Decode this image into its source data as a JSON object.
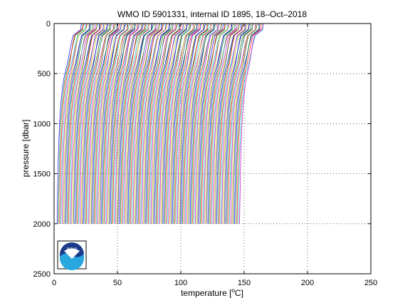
{
  "chart_data": {
    "type": "line",
    "title": "WMO ID 5901331, internal ID 1895, 18–Oct–2018",
    "xlabel_prefix": "temperature [",
    "xlabel_sup": "o",
    "xlabel_suffix": "C]",
    "ylabel": "pressure [dbar]",
    "xlim": [
      0,
      250
    ],
    "ylim": [
      0,
      2500
    ],
    "y_reversed": true,
    "x_ticks": [
      0,
      50,
      100,
      150,
      200,
      250
    ],
    "y_ticks": [
      0,
      500,
      1000,
      1500,
      2000,
      2500
    ],
    "x_tick_labels": [
      "0",
      "50",
      "100",
      "150",
      "200",
      "250"
    ],
    "y_tick_labels": [
      "0",
      "500",
      "1000",
      "1500",
      "2000",
      "2500"
    ],
    "grid": "dotted",
    "profiles": {
      "count": 145,
      "offset_step": 1,
      "first_profile_temperature_vs_pressure": {
        "pressure": [
          0,
          60,
          120,
          200,
          300,
          400,
          500,
          600,
          800,
          1000,
          1200,
          1400,
          1600,
          1800,
          2000
        ],
        "temperature": [
          21.5,
          21.0,
          15.0,
          13.5,
          12.0,
          10.5,
          8.5,
          7.0,
          5.3,
          4.3,
          3.7,
          3.2,
          2.9,
          2.6,
          2.4
        ]
      }
    },
    "series_colors": [
      "#0000ff",
      "#008000",
      "#ff0000",
      "#00bfbf",
      "#bf00bf",
      "#bfbf00",
      "#404040"
    ]
  },
  "logo": {
    "text": "NOAA",
    "icon": "noaa-logo-icon"
  }
}
